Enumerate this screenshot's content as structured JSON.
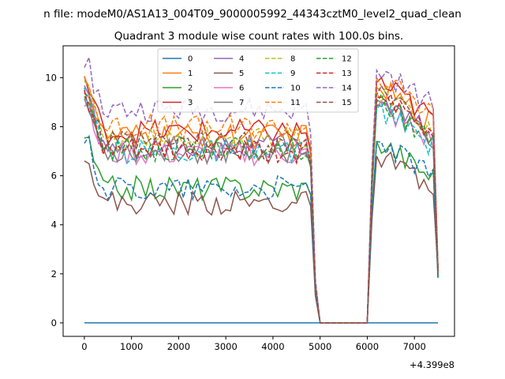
{
  "suptitle": "n file: modeM0/AS1A13_004T09_9000005992_44343cztM0_level2_quad_clean",
  "chart_data": {
    "type": "line",
    "title": "Quadrant 3 module wise count rates with 100.0s bins.",
    "xlabel": "",
    "ylabel": "",
    "x_offset_label": "+4.399e8",
    "xlim": [
      -450,
      7850
    ],
    "ylim": [
      -0.55,
      11.3
    ],
    "x_ticks": [
      0,
      1000,
      2000,
      3000,
      4000,
      5000,
      6000,
      7000
    ],
    "y_ticks": [
      0,
      2,
      4,
      6,
      8,
      10
    ],
    "grid": false,
    "legend_position": "top-center",
    "legend_columns": 4,
    "x_start": 0,
    "x_step": 100,
    "gap_segment": {
      "x": [
        4800,
        4900,
        5000,
        5100,
        5200,
        5300,
        5400,
        5500,
        5600,
        5700,
        5800,
        5900,
        6000,
        6100,
        6200
      ],
      "shape": [
        0.78,
        0.18,
        0,
        0,
        0,
        0,
        0,
        0,
        0,
        0,
        0,
        0,
        0,
        0.62,
        1.0
      ]
    },
    "series": [
      {
        "name": "0",
        "color": "#1f77b4",
        "dash": "solid",
        "pre_level": 0,
        "post_level": 0,
        "constant": 0
      },
      {
        "name": "1",
        "color": "#ff7f0e",
        "dash": "solid",
        "pre_level": 7.6,
        "post_level": 8.6
      },
      {
        "name": "2",
        "color": "#2ca02c",
        "dash": "solid",
        "pre_level": 5.5,
        "post_level": 6.4
      },
      {
        "name": "3",
        "color": "#d62728",
        "dash": "solid",
        "pre_level": 7.8,
        "post_level": 8.8
      },
      {
        "name": "4",
        "color": "#9467bd",
        "dash": "solid",
        "pre_level": 7.2,
        "post_level": 8.1
      },
      {
        "name": "5",
        "color": "#8c564b",
        "dash": "solid",
        "pre_level": 4.9,
        "post_level": 5.8
      },
      {
        "name": "6",
        "color": "#e377c2",
        "dash": "solid",
        "pre_level": 6.9,
        "post_level": 7.8
      },
      {
        "name": "7",
        "color": "#7f7f7f",
        "dash": "solid",
        "pre_level": 7.0,
        "post_level": 7.9
      },
      {
        "name": "8",
        "color": "#bcbd22",
        "dash": "dashed",
        "pre_level": 7.5,
        "post_level": 8.4
      },
      {
        "name": "9",
        "color": "#17becf",
        "dash": "dashed",
        "pre_level": 7.0,
        "post_level": 7.7
      },
      {
        "name": "10",
        "color": "#1f77b4",
        "dash": "dashed",
        "pre_level": 5.5,
        "post_level": 6.4
      },
      {
        "name": "11",
        "color": "#ff7f0e",
        "dash": "dashed",
        "pre_level": 8.0,
        "post_level": 9.0
      },
      {
        "name": "12",
        "color": "#2ca02c",
        "dash": "dashed",
        "pre_level": 7.1,
        "post_level": 8.0
      },
      {
        "name": "13",
        "color": "#d62728",
        "dash": "dashed",
        "pre_level": 7.0,
        "post_level": 8.2
      },
      {
        "name": "14",
        "color": "#9467bd",
        "dash": "dashed",
        "pre_level": 8.7,
        "post_level": 9.3
      },
      {
        "name": "15",
        "color": "#8c564b",
        "dash": "dashed",
        "pre_level": 7.3,
        "post_level": 8.3
      }
    ]
  }
}
